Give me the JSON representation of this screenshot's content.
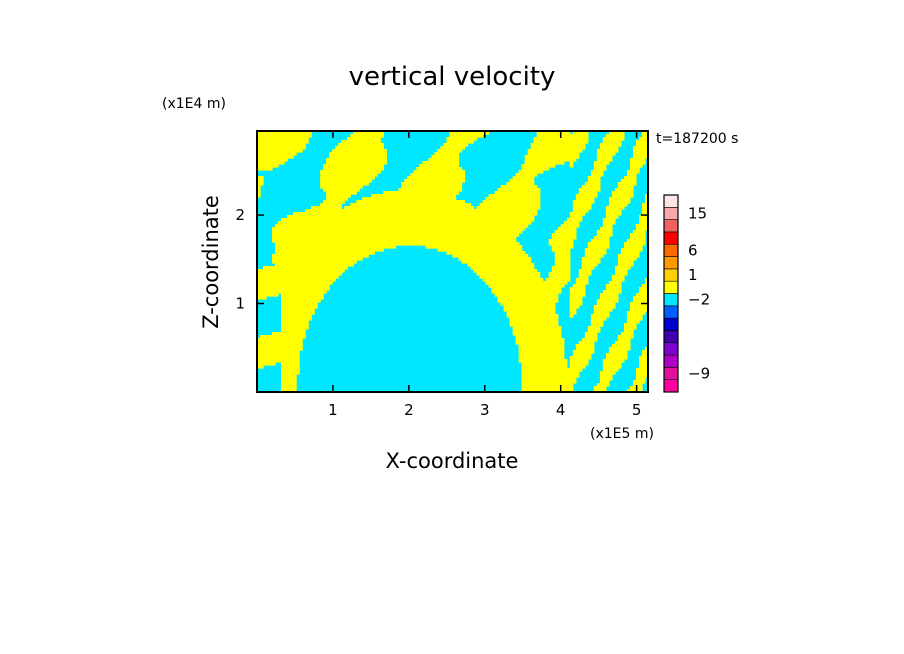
{
  "chart_data": {
    "type": "heatmap",
    "title": "vertical velocity",
    "xlabel": "X-coordinate",
    "ylabel": "Z-coordinate",
    "x_unit": "(x1E5 m)",
    "y_unit": "(x1E4 m)",
    "time_label": "t=187200 s",
    "xlim": [
      0,
      5.15
    ],
    "ylim": [
      0,
      2.95
    ],
    "x_ticks": [
      {
        "value": 1,
        "label": "1"
      },
      {
        "value": 2,
        "label": "2"
      },
      {
        "value": 3,
        "label": "3"
      },
      {
        "value": 4,
        "label": "4"
      },
      {
        "value": 5,
        "label": "5"
      }
    ],
    "y_ticks": [
      {
        "value": 1,
        "label": "1"
      },
      {
        "value": 2,
        "label": "2"
      }
    ],
    "colorbar": {
      "levels": [
        {
          "color": "#ff00a0"
        },
        {
          "color": "#e0109a"
        },
        {
          "color": "#b000c8"
        },
        {
          "color": "#8000d0"
        },
        {
          "color": "#4000b0"
        },
        {
          "color": "#0000d0"
        },
        {
          "color": "#0060ff"
        },
        {
          "color": "#00e8ff"
        },
        {
          "color": "#ffff00"
        },
        {
          "color": "#ffd000"
        },
        {
          "color": "#ff9a00"
        },
        {
          "color": "#ff6a00"
        },
        {
          "color": "#ff0000"
        },
        {
          "color": "#f06060"
        },
        {
          "color": "#f8a8a8"
        },
        {
          "color": "#fde6e6"
        }
      ],
      "tick_labels": [
        {
          "label": "-9",
          "level_index": 1
        },
        {
          "label": "-2",
          "level_index": 7
        },
        {
          "label": "1",
          "level_index": 9
        },
        {
          "label": "6",
          "level_index": 11
        },
        {
          "label": "15",
          "level_index": 14
        }
      ]
    },
    "field": {
      "positive_color": "#ffff00",
      "negative_color": "#00e8ff"
    }
  }
}
